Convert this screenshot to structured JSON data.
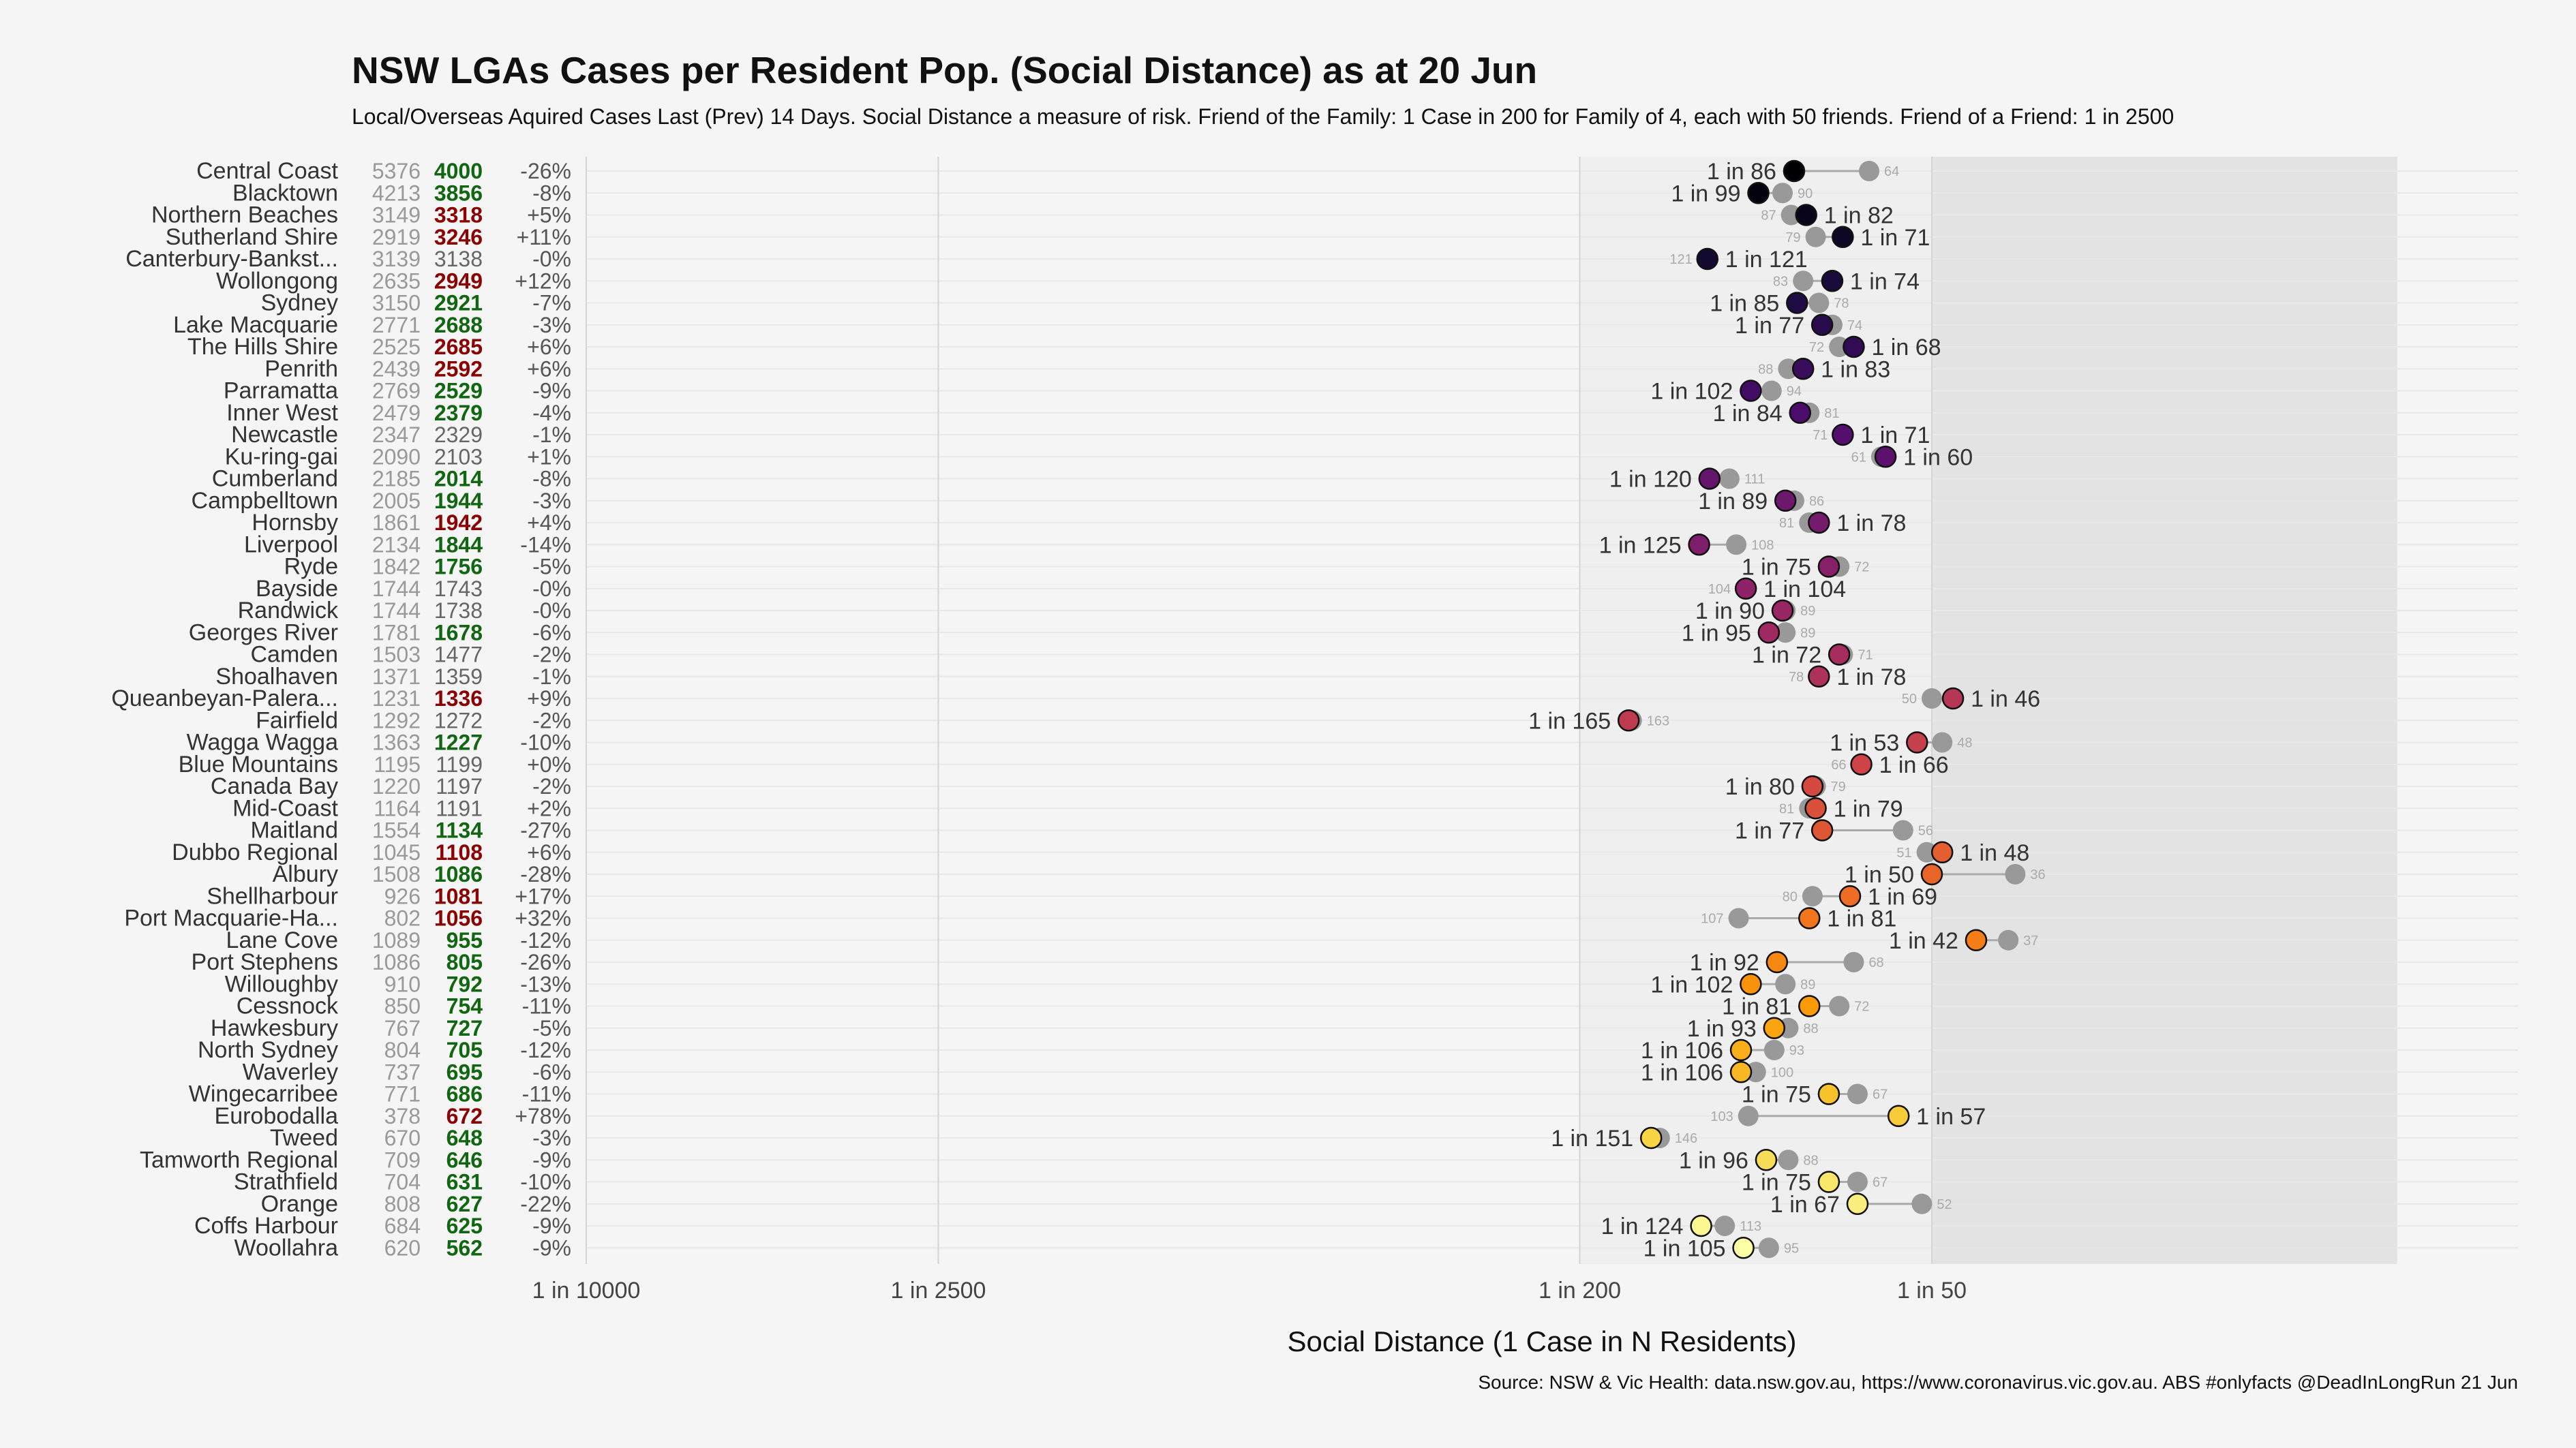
{
  "chart_data": {
    "type": "dot-range",
    "title": "NSW LGAs Cases per Resident Pop. (Social Distance) as at 20 Jun",
    "subtitle": "Local/Overseas Aquired Cases Last (Prev) 14 Days. Social Distance a measure of risk. Friend of the Family: 1 Case in 200 for Family of 4, each with 50 friends. Friend of a Friend: 1 in 2500",
    "xlabel": "Social Distance (1 Case in N Residents)",
    "caption": "Source: NSW & Vic Health: data.nsw.gov.au, https://www.coronavirus.vic.gov.au. ABS #onlyfacts @DeadInLongRun 21 Jun",
    "x_scale": "log (reversed)",
    "xlim": [
      10000,
      8
    ],
    "x_ticks": [
      {
        "value": 10000,
        "label": "1 in 10000"
      },
      {
        "value": 2500,
        "label": "1 in 2500"
      },
      {
        "value": 200,
        "label": "1 in 200"
      },
      {
        "value": 50,
        "label": "1 in 50"
      }
    ],
    "shaded_bands": [
      {
        "from": 200,
        "to": 50,
        "color": "#efefef"
      },
      {
        "from": 50,
        "to": 8,
        "color": "#e3e3e3"
      }
    ],
    "colors": {
      "better": "#116611",
      "worse": "#8b0000",
      "same": "#666666",
      "prev_dot": "#999999"
    },
    "rows": [
      {
        "lga": "Central Coast",
        "prev": "5376",
        "cur": "4000",
        "status": "better",
        "change": "-26%",
        "cur_n": 86,
        "prev_n": 64,
        "label": "1 in 86",
        "prev_label": "64"
      },
      {
        "lga": "Blacktown",
        "prev": "4213",
        "cur": "3856",
        "status": "better",
        "change": "-8%",
        "cur_n": 99,
        "prev_n": 90,
        "label": "1 in 99",
        "prev_label": "90"
      },
      {
        "lga": "Northern Beaches",
        "prev": "3149",
        "cur": "3318",
        "status": "worse",
        "change": "+5%",
        "cur_n": 82,
        "prev_n": 87,
        "label": "1 in 82",
        "prev_label": "87"
      },
      {
        "lga": "Sutherland Shire",
        "prev": "2919",
        "cur": "3246",
        "status": "worse",
        "change": "+11%",
        "cur_n": 71,
        "prev_n": 79,
        "label": "1 in 71",
        "prev_label": "79"
      },
      {
        "lga": "Canterbury-Bankst...",
        "prev": "3139",
        "cur": "3138",
        "status": "same",
        "change": "-0%",
        "cur_n": 121,
        "prev_n": 121,
        "label": "1 in 121",
        "prev_label": "121"
      },
      {
        "lga": "Wollongong",
        "prev": "2635",
        "cur": "2949",
        "status": "worse",
        "change": "+12%",
        "cur_n": 74,
        "prev_n": 83,
        "label": "1 in 74",
        "prev_label": "83"
      },
      {
        "lga": "Sydney",
        "prev": "3150",
        "cur": "2921",
        "status": "better",
        "change": "-7%",
        "cur_n": 85,
        "prev_n": 78,
        "label": "1 in 85",
        "prev_label": "78"
      },
      {
        "lga": "Lake Macquarie",
        "prev": "2771",
        "cur": "2688",
        "status": "better",
        "change": "-3%",
        "cur_n": 77,
        "prev_n": 74,
        "label": "1 in 77",
        "prev_label": "74"
      },
      {
        "lga": "The Hills Shire",
        "prev": "2525",
        "cur": "2685",
        "status": "worse",
        "change": "+6%",
        "cur_n": 68,
        "prev_n": 72,
        "label": "1 in 68",
        "prev_label": "72"
      },
      {
        "lga": "Penrith",
        "prev": "2439",
        "cur": "2592",
        "status": "worse",
        "change": "+6%",
        "cur_n": 83,
        "prev_n": 88,
        "label": "1 in 83",
        "prev_label": "88"
      },
      {
        "lga": "Parramatta",
        "prev": "2769",
        "cur": "2529",
        "status": "better",
        "change": "-9%",
        "cur_n": 102,
        "prev_n": 94,
        "label": "1 in 102",
        "prev_label": "94"
      },
      {
        "lga": "Inner West",
        "prev": "2479",
        "cur": "2379",
        "status": "better",
        "change": "-4%",
        "cur_n": 84,
        "prev_n": 81,
        "label": "1 in 84",
        "prev_label": "81"
      },
      {
        "lga": "Newcastle",
        "prev": "2347",
        "cur": "2329",
        "status": "same",
        "change": "-1%",
        "cur_n": 71,
        "prev_n": 71,
        "label": "1 in 71",
        "prev_label": "71"
      },
      {
        "lga": "Ku-ring-gai",
        "prev": "2090",
        "cur": "2103",
        "status": "same",
        "change": "+1%",
        "cur_n": 60,
        "prev_n": 61,
        "label": "1 in 60",
        "prev_label": "61"
      },
      {
        "lga": "Cumberland",
        "prev": "2185",
        "cur": "2014",
        "status": "better",
        "change": "-8%",
        "cur_n": 120,
        "prev_n": 111,
        "label": "1 in 120",
        "prev_label": "111"
      },
      {
        "lga": "Campbelltown",
        "prev": "2005",
        "cur": "1944",
        "status": "better",
        "change": "-3%",
        "cur_n": 89,
        "prev_n": 86,
        "label": "1 in 89",
        "prev_label": "86"
      },
      {
        "lga": "Hornsby",
        "prev": "1861",
        "cur": "1942",
        "status": "worse",
        "change": "+4%",
        "cur_n": 78,
        "prev_n": 81,
        "label": "1 in 78",
        "prev_label": "81"
      },
      {
        "lga": "Liverpool",
        "prev": "2134",
        "cur": "1844",
        "status": "better",
        "change": "-14%",
        "cur_n": 125,
        "prev_n": 108,
        "label": "1 in 125",
        "prev_label": "108"
      },
      {
        "lga": "Ryde",
        "prev": "1842",
        "cur": "1756",
        "status": "better",
        "change": "-5%",
        "cur_n": 75,
        "prev_n": 72,
        "label": "1 in 75",
        "prev_label": "72"
      },
      {
        "lga": "Bayside",
        "prev": "1744",
        "cur": "1743",
        "status": "same",
        "change": "-0%",
        "cur_n": 104,
        "prev_n": 104,
        "label": "1 in 104",
        "prev_label": "104"
      },
      {
        "lga": "Randwick",
        "prev": "1744",
        "cur": "1738",
        "status": "same",
        "change": "-0%",
        "cur_n": 90,
        "prev_n": 89,
        "label": "1 in 90",
        "prev_label": "89"
      },
      {
        "lga": "Georges River",
        "prev": "1781",
        "cur": "1678",
        "status": "better",
        "change": "-6%",
        "cur_n": 95,
        "prev_n": 89,
        "label": "1 in 95",
        "prev_label": "89"
      },
      {
        "lga": "Camden",
        "prev": "1503",
        "cur": "1477",
        "status": "same",
        "change": "-2%",
        "cur_n": 72,
        "prev_n": 71,
        "label": "1 in 72",
        "prev_label": "71"
      },
      {
        "lga": "Shoalhaven",
        "prev": "1371",
        "cur": "1359",
        "status": "same",
        "change": "-1%",
        "cur_n": 78,
        "prev_n": 78,
        "label": "1 in 78",
        "prev_label": "78"
      },
      {
        "lga": "Queanbeyan-Palera...",
        "prev": "1231",
        "cur": "1336",
        "status": "worse",
        "change": "+9%",
        "cur_n": 46,
        "prev_n": 50,
        "label": "1 in 46",
        "prev_label": "50"
      },
      {
        "lga": "Fairfield",
        "prev": "1292",
        "cur": "1272",
        "status": "same",
        "change": "-2%",
        "cur_n": 165,
        "prev_n": 163,
        "label": "1 in 165",
        "prev_label": "163"
      },
      {
        "lga": "Wagga Wagga",
        "prev": "1363",
        "cur": "1227",
        "status": "better",
        "change": "-10%",
        "cur_n": 53,
        "prev_n": 48,
        "label": "1 in 53",
        "prev_label": "48"
      },
      {
        "lga": "Blue Mountains",
        "prev": "1195",
        "cur": "1199",
        "status": "same",
        "change": "+0%",
        "cur_n": 66,
        "prev_n": 66,
        "label": "1 in 66",
        "prev_label": "66"
      },
      {
        "lga": "Canada Bay",
        "prev": "1220",
        "cur": "1197",
        "status": "same",
        "change": "-2%",
        "cur_n": 80,
        "prev_n": 79,
        "label": "1 in 80",
        "prev_label": "79"
      },
      {
        "lga": "Mid-Coast",
        "prev": "1164",
        "cur": "1191",
        "status": "same",
        "change": "+2%",
        "cur_n": 79,
        "prev_n": 81,
        "label": "1 in 79",
        "prev_label": "81"
      },
      {
        "lga": "Maitland",
        "prev": "1554",
        "cur": "1134",
        "status": "better",
        "change": "-27%",
        "cur_n": 77,
        "prev_n": 56,
        "label": "1 in 77",
        "prev_label": "56"
      },
      {
        "lga": "Dubbo Regional",
        "prev": "1045",
        "cur": "1108",
        "status": "worse",
        "change": "+6%",
        "cur_n": 48,
        "prev_n": 51,
        "label": "1 in 48",
        "prev_label": "51"
      },
      {
        "lga": "Albury",
        "prev": "1508",
        "cur": "1086",
        "status": "better",
        "change": "-28%",
        "cur_n": 50,
        "prev_n": 36,
        "label": "1 in 50",
        "prev_label": "36"
      },
      {
        "lga": "Shellharbour",
        "prev": "926",
        "cur": "1081",
        "status": "worse",
        "change": "+17%",
        "cur_n": 69,
        "prev_n": 80,
        "label": "1 in 69",
        "prev_label": "80"
      },
      {
        "lga": "Port Macquarie-Ha...",
        "prev": "802",
        "cur": "1056",
        "status": "worse",
        "change": "+32%",
        "cur_n": 81,
        "prev_n": 107,
        "label": "1 in 81",
        "prev_label": "107"
      },
      {
        "lga": "Lane Cove",
        "prev": "1089",
        "cur": "955",
        "status": "better",
        "change": "-12%",
        "cur_n": 42,
        "prev_n": 37,
        "label": "1 in 42",
        "prev_label": "37"
      },
      {
        "lga": "Port Stephens",
        "prev": "1086",
        "cur": "805",
        "status": "better",
        "change": "-26%",
        "cur_n": 92,
        "prev_n": 68,
        "label": "1 in 92",
        "prev_label": "68"
      },
      {
        "lga": "Willoughby",
        "prev": "910",
        "cur": "792",
        "status": "better",
        "change": "-13%",
        "cur_n": 102,
        "prev_n": 89,
        "label": "1 in 102",
        "prev_label": "89"
      },
      {
        "lga": "Cessnock",
        "prev": "850",
        "cur": "754",
        "status": "better",
        "change": "-11%",
        "cur_n": 81,
        "prev_n": 72,
        "label": "1 in 81",
        "prev_label": "72"
      },
      {
        "lga": "Hawkesbury",
        "prev": "767",
        "cur": "727",
        "status": "better",
        "change": "-5%",
        "cur_n": 93,
        "prev_n": 88,
        "label": "1 in 93",
        "prev_label": "88"
      },
      {
        "lga": "North Sydney",
        "prev": "804",
        "cur": "705",
        "status": "better",
        "change": "-12%",
        "cur_n": 106,
        "prev_n": 93,
        "label": "1 in 106",
        "prev_label": "93"
      },
      {
        "lga": "Waverley",
        "prev": "737",
        "cur": "695",
        "status": "better",
        "change": "-6%",
        "cur_n": 106,
        "prev_n": 100,
        "label": "1 in 106",
        "prev_label": "100"
      },
      {
        "lga": "Wingecarribee",
        "prev": "771",
        "cur": "686",
        "status": "better",
        "change": "-11%",
        "cur_n": 75,
        "prev_n": 67,
        "label": "1 in 75",
        "prev_label": "67"
      },
      {
        "lga": "Eurobodalla",
        "prev": "378",
        "cur": "672",
        "status": "worse",
        "change": "+78%",
        "cur_n": 57,
        "prev_n": 103,
        "label": "1 in 57",
        "prev_label": "103"
      },
      {
        "lga": "Tweed",
        "prev": "670",
        "cur": "648",
        "status": "better",
        "change": "-3%",
        "cur_n": 151,
        "prev_n": 146,
        "label": "1 in 151",
        "prev_label": "146"
      },
      {
        "lga": "Tamworth Regional",
        "prev": "709",
        "cur": "646",
        "status": "better",
        "change": "-9%",
        "cur_n": 96,
        "prev_n": 88,
        "label": "1 in 96",
        "prev_label": "88"
      },
      {
        "lga": "Strathfield",
        "prev": "704",
        "cur": "631",
        "status": "better",
        "change": "-10%",
        "cur_n": 75,
        "prev_n": 67,
        "label": "1 in 75",
        "prev_label": "67"
      },
      {
        "lga": "Orange",
        "prev": "808",
        "cur": "627",
        "status": "better",
        "change": "-22%",
        "cur_n": 67,
        "prev_n": 52,
        "label": "1 in 67",
        "prev_label": "52"
      },
      {
        "lga": "Coffs Harbour",
        "prev": "684",
        "cur": "625",
        "status": "better",
        "change": "-9%",
        "cur_n": 124,
        "prev_n": 113,
        "label": "1 in 124",
        "prev_label": "113"
      },
      {
        "lga": "Woollahra",
        "prev": "620",
        "cur": "562",
        "status": "better",
        "change": "-9%",
        "cur_n": 105,
        "prev_n": 95,
        "label": "1 in 105",
        "prev_label": "95"
      }
    ]
  }
}
